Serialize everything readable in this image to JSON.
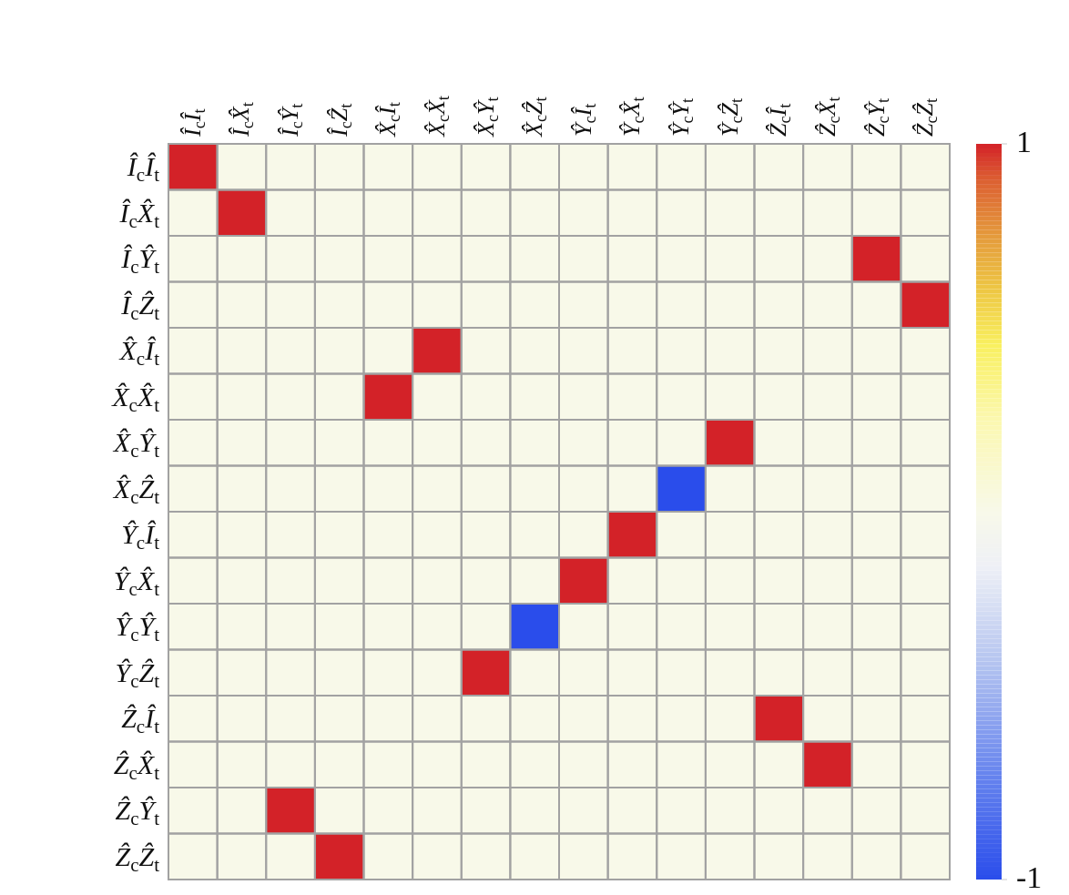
{
  "chart_data": {
    "type": "heatmap",
    "categories": [
      "Î$_{c}$Î$_{t}$",
      "Î$_{c}$X̂$_{t}$",
      "Î$_{c}$Ŷ$_{t}$",
      "Î$_{c}$Ẑ$_{t}$",
      "X̂$_{c}$Î$_{t}$",
      "X̂$_{c}$X̂$_{t}$",
      "X̂$_{c}$Ŷ$_{t}$",
      "X̂$_{c}$Ẑ$_{t}$",
      "Ŷ$_{c}$Î$_{t}$",
      "Ŷ$_{c}$X̂$_{t}$",
      "Ŷ$_{c}$Ŷ$_{t}$",
      "Ŷ$_{c}$Ẑ$_{t}$",
      "Ẑ$_{c}$Î$_{t}$",
      "Ẑ$_{c}$X̂$_{t}$",
      "Ẑ$_{c}$Ŷ$_{t}$",
      "Ẑ$_{c}$Ẑ$_{t}$"
    ],
    "y_categories": [
      "Î$_{c}$Î$_{t}$",
      "Î$_{c}$X̂$_{t}$",
      "Î$_{c}$Ŷ$_{t}$",
      "Î$_{c}$Ẑ$_{t}$",
      "X̂$_{c}$Î$_{t}$",
      "X̂$_{c}$X̂$_{t}$",
      "X̂$_{c}$Ŷ$_{t}$",
      "X̂$_{c}$Ẑ$_{t}$",
      "Ŷ$_{c}$Î$_{t}$",
      "Ŷ$_{c}$X̂$_{t}$",
      "Ŷ$_{c}$Ŷ$_{t}$",
      "Ŷ$_{c}$Ẑ$_{t}$",
      "Ẑ$_{c}$Î$_{t}$",
      "Ẑ$_{c}$X̂$_{t}$",
      "Ẑ$_{c}$Ŷ$_{t}$",
      "Ẑ$_{c}$Ẑ$_{t}$"
    ],
    "cells": [
      [
        1,
        0,
        0,
        0,
        0,
        0,
        0,
        0,
        0,
        0,
        0,
        0,
        0,
        0,
        0,
        0
      ],
      [
        0,
        1,
        0,
        0,
        0,
        0,
        0,
        0,
        0,
        0,
        0,
        0,
        0,
        0,
        0,
        0
      ],
      [
        0,
        0,
        0,
        0,
        0,
        0,
        0,
        0,
        0,
        0,
        0,
        0,
        0,
        0,
        1,
        0
      ],
      [
        0,
        0,
        0,
        0,
        0,
        0,
        0,
        0,
        0,
        0,
        0,
        0,
        0,
        0,
        0,
        1
      ],
      [
        0,
        0,
        0,
        0,
        0,
        1,
        0,
        0,
        0,
        0,
        0,
        0,
        0,
        0,
        0,
        0
      ],
      [
        0,
        0,
        0,
        0,
        1,
        0,
        0,
        0,
        0,
        0,
        0,
        0,
        0,
        0,
        0,
        0
      ],
      [
        0,
        0,
        0,
        0,
        0,
        0,
        0,
        0,
        0,
        0,
        0,
        1,
        0,
        0,
        0,
        0
      ],
      [
        0,
        0,
        0,
        0,
        0,
        0,
        0,
        0,
        0,
        0,
        -1,
        0,
        0,
        0,
        0,
        0
      ],
      [
        0,
        0,
        0,
        0,
        0,
        0,
        0,
        0,
        0,
        1,
        0,
        0,
        0,
        0,
        0,
        0
      ],
      [
        0,
        0,
        0,
        0,
        0,
        0,
        0,
        0,
        1,
        0,
        0,
        0,
        0,
        0,
        0,
        0
      ],
      [
        0,
        0,
        0,
        0,
        0,
        0,
        0,
        -1,
        0,
        0,
        0,
        0,
        0,
        0,
        0,
        0
      ],
      [
        0,
        0,
        0,
        0,
        0,
        0,
        1,
        0,
        0,
        0,
        0,
        0,
        0,
        0,
        0,
        0
      ],
      [
        0,
        0,
        0,
        0,
        0,
        0,
        0,
        0,
        0,
        0,
        0,
        0,
        1,
        0,
        0,
        0
      ],
      [
        0,
        0,
        0,
        0,
        0,
        0,
        0,
        0,
        0,
        0,
        0,
        0,
        0,
        1,
        0,
        0
      ],
      [
        0,
        0,
        1,
        0,
        0,
        0,
        0,
        0,
        0,
        0,
        0,
        0,
        0,
        0,
        0,
        0
      ],
      [
        0,
        0,
        0,
        1,
        0,
        0,
        0,
        0,
        0,
        0,
        0,
        0,
        0,
        0,
        0,
        0
      ]
    ],
    "clim": [
      -1,
      1
    ],
    "cticks": [
      -1,
      1
    ]
  }
}
